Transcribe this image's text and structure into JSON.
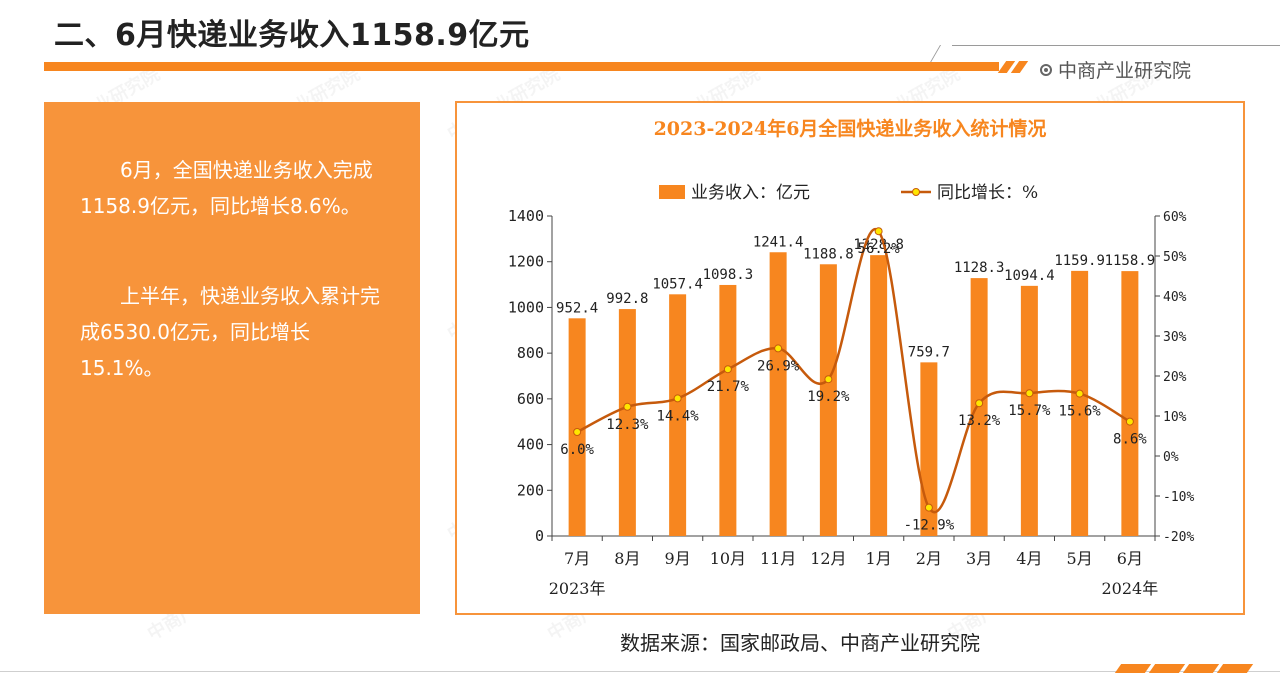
{
  "header": {
    "title": "二、6月快递业务收入1158.9亿元",
    "brand": "中商产业研究院"
  },
  "text_panel": {
    "paragraph1": "6月，全国快递业务收入完成1158.9亿元，同比增长8.6%。",
    "paragraph2": "上半年，快递业务收入累计完成6530.0亿元，同比增长15.1%。"
  },
  "source": "数据来源：国家邮政局、中商产业研究院",
  "watermark": "中商产业研究院",
  "colors": {
    "accent": "#f7861f",
    "bar": "#f7861f",
    "line": "#c65a0c",
    "marker_fill": "#ffe600",
    "panel": "#f7943b"
  },
  "chart_data": {
    "type": "bar",
    "title": "2023-2024年6月全国快递业务收入统计情况",
    "categories": [
      "7月",
      "8月",
      "9月",
      "10月",
      "11月",
      "12月",
      "1月",
      "2月",
      "3月",
      "4月",
      "5月",
      "6月"
    ],
    "year_labels": [
      "2023年",
      "2024年"
    ],
    "series": [
      {
        "name": "业务收入：亿元",
        "type": "bar",
        "axis": "left",
        "values": [
          952.4,
          992.8,
          1057.4,
          1098.3,
          1241.4,
          1188.8,
          1228.8,
          759.7,
          1128.3,
          1094.4,
          1159.9,
          1158.9
        ],
        "labels": [
          "952.4",
          "992.8",
          "1057.4",
          "1098.3",
          "1241.4",
          "1188.8",
          "1228.8",
          "759.7",
          "1128.3",
          "1094.4",
          "1159.9",
          "1158.9"
        ]
      },
      {
        "name": "同比增长：%",
        "type": "line",
        "axis": "right",
        "values": [
          6.0,
          12.3,
          14.4,
          21.7,
          26.9,
          19.2,
          56.2,
          -12.9,
          13.2,
          15.7,
          15.6,
          8.6
        ],
        "labels": [
          "6.0%",
          "12.3%",
          "14.4%",
          "21.7%",
          "26.9%",
          "19.2%",
          "56.2%",
          "-12.9%",
          "13.2%",
          "15.7%",
          "15.6%",
          "8.6%"
        ]
      }
    ],
    "y_left": {
      "min": 0,
      "max": 1400,
      "ticks": [
        "0",
        "200",
        "400",
        "600",
        "800",
        "1000",
        "1200",
        "1400"
      ]
    },
    "y_right": {
      "min": -20,
      "max": 60,
      "ticks": [
        "-20%",
        "-10%",
        "0%",
        "10%",
        "20%",
        "30%",
        "40%",
        "50%",
        "60%"
      ]
    },
    "legend_position": "top",
    "grid": false
  }
}
